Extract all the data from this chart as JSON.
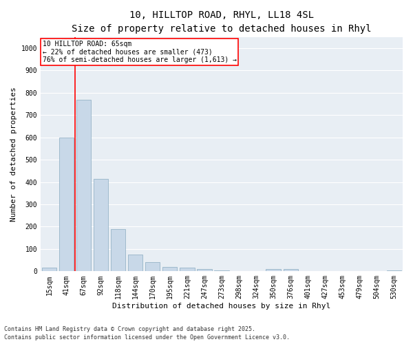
{
  "title_line1": "10, HILLTOP ROAD, RHYL, LL18 4SL",
  "title_line2": "Size of property relative to detached houses in Rhyl",
  "xlabel": "Distribution of detached houses by size in Rhyl",
  "ylabel": "Number of detached properties",
  "categories": [
    "15sqm",
    "41sqm",
    "67sqm",
    "92sqm",
    "118sqm",
    "144sqm",
    "170sqm",
    "195sqm",
    "221sqm",
    "247sqm",
    "273sqm",
    "298sqm",
    "324sqm",
    "350sqm",
    "376sqm",
    "401sqm",
    "427sqm",
    "453sqm",
    "479sqm",
    "504sqm",
    "530sqm"
  ],
  "values": [
    15,
    600,
    770,
    415,
    190,
    75,
    40,
    20,
    15,
    10,
    5,
    0,
    0,
    10,
    10,
    0,
    0,
    0,
    0,
    0,
    5
  ],
  "bar_color": "#c8d8e8",
  "bar_edge_color": "#88aac0",
  "marker_line_color": "red",
  "annotation_line1": "10 HILLTOP ROAD: 65sqm",
  "annotation_line2": "← 22% of detached houses are smaller (473)",
  "annotation_line3": "76% of semi-detached houses are larger (1,613) →",
  "ylim": [
    0,
    1050
  ],
  "yticks": [
    0,
    100,
    200,
    300,
    400,
    500,
    600,
    700,
    800,
    900,
    1000
  ],
  "bg_color": "#e8eef4",
  "footer_line1": "Contains HM Land Registry data © Crown copyright and database right 2025.",
  "footer_line2": "Contains public sector information licensed under the Open Government Licence v3.0.",
  "title_fontsize": 10,
  "subtitle_fontsize": 9,
  "tick_fontsize": 7,
  "label_fontsize": 8,
  "annotation_fontsize": 7,
  "footer_fontsize": 6
}
